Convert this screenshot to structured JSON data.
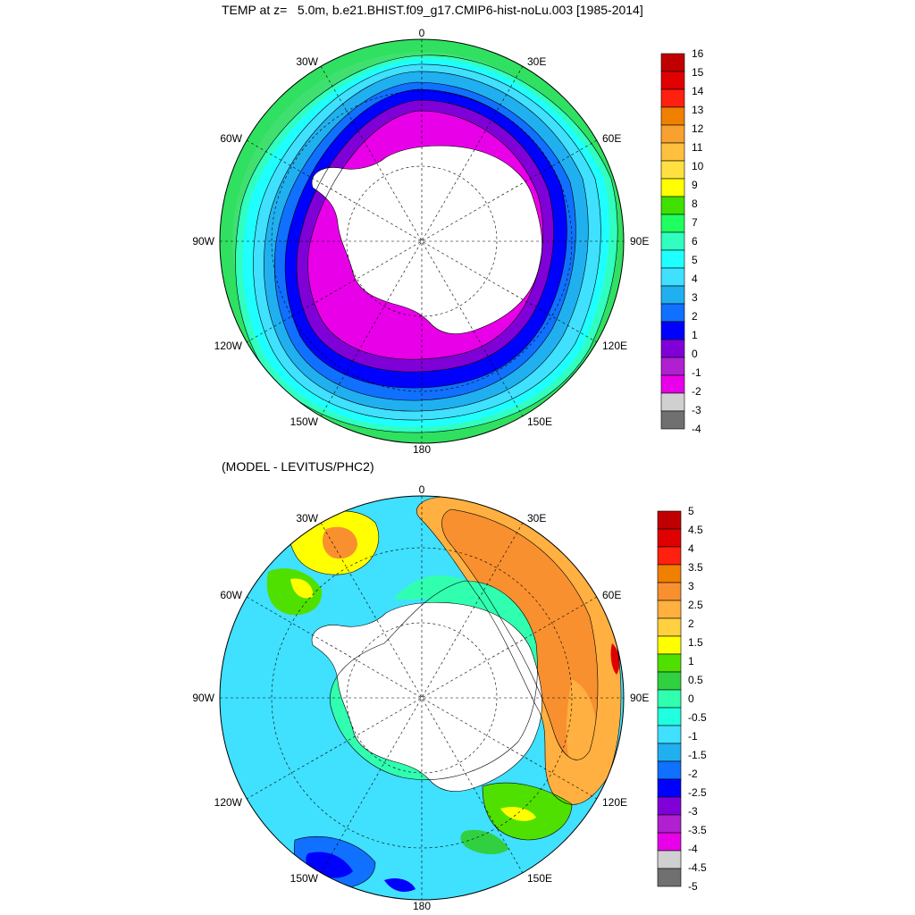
{
  "panels": [
    {
      "id": "top",
      "title": "TEMP at z=   5.0m, b.e21.BHIST.f09_g17.CMIP6-hist-noLu.003 [1985-2014]",
      "colorbar_labels": [
        "16",
        "15",
        "14",
        "13",
        "12",
        "11",
        "10",
        "9",
        "8",
        "7",
        "6",
        "5",
        "4",
        "3",
        "2",
        "1",
        "0",
        "-1",
        "-2",
        "-3",
        "-4"
      ],
      "colorbar_colors": [
        "#c00000",
        "#e00000",
        "#ff2010",
        "#f08000",
        "#f8a030",
        "#ffc040",
        "#ffe040",
        "#ffff00",
        "#40e000",
        "#20ff60",
        "#30ffc0",
        "#20ffff",
        "#40e0ff",
        "#20b0f0",
        "#1070ff",
        "#0000ff",
        "#8000d8",
        "#b020d0",
        "#e800e8",
        "#d0d0d0",
        "#707070"
      ]
    },
    {
      "id": "bottom",
      "title": "(MODEL - LEVITUS/PHC2)",
      "colorbar_labels": [
        "5",
        "4.5",
        "4",
        "3.5",
        "3",
        "2.5",
        "2",
        "1.5",
        "1",
        "0.5",
        "0",
        "-0.5",
        "-1",
        "-1.5",
        "-2",
        "-2.5",
        "-3",
        "-3.5",
        "-4",
        "-4.5",
        "-5"
      ],
      "colorbar_colors": [
        "#c00000",
        "#e00000",
        "#ff2010",
        "#f08000",
        "#f89030",
        "#ffb040",
        "#ffd040",
        "#ffff00",
        "#50e000",
        "#30d040",
        "#30ffb0",
        "#20ffe0",
        "#40e0ff",
        "#20b0f0",
        "#1070ff",
        "#0000ff",
        "#8000d8",
        "#b020d0",
        "#e800e8",
        "#d0d0d0",
        "#707070"
      ]
    }
  ],
  "longitude_labels": [
    "0",
    "30E",
    "60E",
    "90E",
    "120E",
    "150E",
    "180",
    "150W",
    "120W",
    "90W",
    "60W",
    "30W"
  ]
}
